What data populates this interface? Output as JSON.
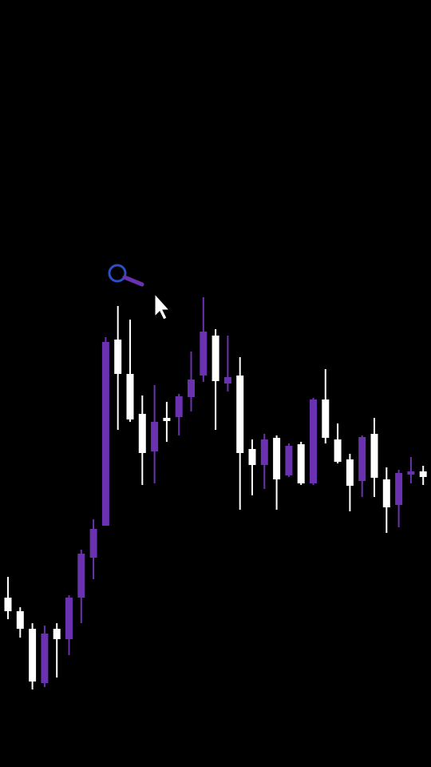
{
  "chart_data": {
    "type": "candlestick",
    "open": [
      212,
      195,
      173,
      105,
      173,
      160,
      212,
      262,
      302,
      535,
      492,
      442,
      395,
      437,
      438,
      463,
      490,
      540,
      480,
      490,
      398,
      378,
      412,
      365,
      404,
      355,
      460,
      410,
      385,
      358,
      417,
      360,
      328,
      366,
      370
    ],
    "high": [
      238,
      200,
      180,
      177,
      180,
      215,
      272,
      310,
      538,
      577,
      560,
      465,
      478,
      457,
      467,
      520,
      588,
      548,
      540,
      513,
      410,
      417,
      415,
      405,
      407,
      462,
      498,
      430,
      392,
      415,
      437,
      375,
      372,
      388,
      377
    ],
    "low": [
      185,
      162,
      97,
      100,
      112,
      140,
      180,
      235,
      302,
      422,
      432,
      353,
      355,
      407,
      415,
      445,
      482,
      422,
      470,
      322,
      340,
      348,
      322,
      363,
      353,
      353,
      405,
      380,
      320,
      338,
      338,
      293,
      300,
      355,
      353
    ],
    "close": [
      195,
      173,
      107,
      167,
      160,
      212,
      267,
      298,
      532,
      492,
      435,
      393,
      432,
      433,
      464,
      485,
      545,
      483,
      488,
      393,
      378,
      410,
      360,
      402,
      355,
      460,
      412,
      382,
      352,
      413,
      362,
      325,
      368,
      370,
      363
    ],
    "up_color": "#6a32b0",
    "down_color": "#ffffff",
    "ylim": [
      0,
      960
    ]
  }
}
